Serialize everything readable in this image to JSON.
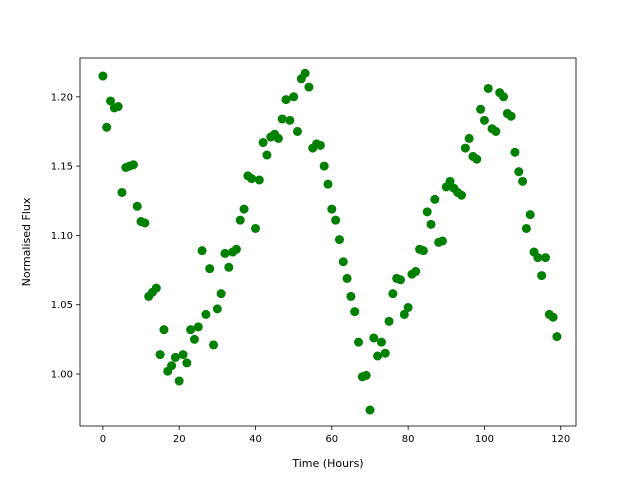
{
  "chart_data": {
    "type": "scatter",
    "x_label": "Time (Hours)",
    "y_label": "Normalised Flux",
    "color": "#008000",
    "xlim": [
      -6,
      124
    ],
    "ylim": [
      0.9625,
      1.228
    ],
    "xticks": [
      0,
      20,
      40,
      60,
      80,
      100,
      120
    ],
    "yticks": [
      {
        "value": 1.0,
        "label": "1.00"
      },
      1.05,
      {
        "value": 1.1,
        "label": "1.10"
      },
      1.15,
      {
        "value": 1.2,
        "label": "1.20"
      }
    ],
    "x": [
      0,
      1,
      2,
      3,
      4,
      5,
      6,
      7,
      8,
      9,
      10,
      11,
      12,
      13,
      14,
      15,
      16,
      17,
      18,
      19,
      20,
      21,
      22,
      23,
      24,
      25,
      26,
      27,
      28,
      29,
      30,
      31,
      32,
      33,
      34,
      35,
      36,
      37,
      38,
      39,
      40,
      41,
      42,
      43,
      44,
      45,
      46,
      47,
      48,
      49,
      50,
      51,
      52,
      53,
      54,
      55,
      56,
      57,
      58,
      59,
      60,
      61,
      62,
      63,
      64,
      65,
      66,
      67,
      68,
      69,
      70,
      71,
      72,
      73,
      74,
      75,
      76,
      77,
      78,
      79,
      80,
      81,
      82,
      83,
      84,
      85,
      86,
      87,
      88,
      89,
      90,
      91,
      92,
      93,
      94,
      95,
      96,
      97,
      98,
      99,
      100,
      101,
      102,
      103,
      104,
      105,
      106,
      107,
      108,
      109,
      110,
      111,
      112,
      113,
      114,
      115,
      116,
      117,
      118,
      119
    ],
    "values": [
      1.215,
      1.178,
      1.197,
      1.192,
      1.193,
      1.131,
      1.149,
      1.15,
      1.151,
      1.121,
      1.11,
      1.109,
      1.056,
      1.059,
      1.062,
      1.014,
      1.032,
      1.002,
      1.006,
      1.012,
      0.995,
      1.014,
      1.008,
      1.032,
      1.025,
      1.034,
      1.089,
      1.043,
      1.076,
      1.021,
      1.047,
      1.058,
      1.087,
      1.077,
      1.088,
      1.09,
      1.111,
      1.119,
      1.143,
      1.141,
      1.105,
      1.14,
      1.167,
      1.158,
      1.171,
      1.173,
      1.17,
      1.184,
      1.198,
      1.183,
      1.2,
      1.175,
      1.213,
      1.217,
      1.207,
      1.163,
      1.166,
      1.165,
      1.15,
      1.137,
      1.119,
      1.111,
      1.097,
      1.081,
      1.069,
      1.056,
      1.045,
      1.023,
      0.998,
      0.999,
      0.974,
      1.026,
      1.013,
      1.023,
      1.015,
      1.038,
      1.058,
      1.069,
      1.068,
      1.043,
      1.048,
      1.072,
      1.074,
      1.09,
      1.089,
      1.117,
      1.108,
      1.126,
      1.095,
      1.096,
      1.135,
      1.139,
      1.134,
      1.131,
      1.129,
      1.163,
      1.17,
      1.157,
      1.155,
      1.191,
      1.183,
      1.206,
      1.177,
      1.175,
      1.203,
      1.2,
      1.188,
      1.186,
      1.16,
      1.146,
      1.139,
      1.105,
      1.115,
      1.088,
      1.084,
      1.071,
      1.084,
      1.043,
      1.041,
      1.027
    ]
  }
}
